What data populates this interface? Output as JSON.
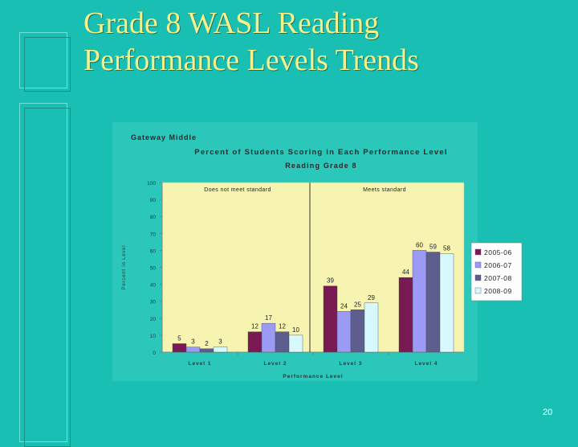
{
  "slide": {
    "title_line1": "Grade 8 WASL Reading",
    "title_line2": "Performance Levels Trends",
    "page_number": "20"
  },
  "chart_data": {
    "type": "bar",
    "school": "Gateway Middle",
    "title": "Percent of Students Scoring in Each Performance Level",
    "subtitle": "Reading Grade 8",
    "xlabel": "Performance Level",
    "ylabel": "Percent in Level",
    "ylim": [
      0,
      100
    ],
    "yticks": [
      0,
      10,
      20,
      30,
      40,
      50,
      60,
      70,
      80,
      90,
      100
    ],
    "grid": false,
    "legend_position": "right",
    "categories": [
      "Level 1",
      "Level 2",
      "Level 3",
      "Level 4"
    ],
    "series": [
      {
        "name": "2005-06",
        "color": "#7a1a55",
        "values": [
          5,
          12,
          39,
          44
        ]
      },
      {
        "name": "2006-07",
        "color": "#9b9bf5",
        "values": [
          3,
          17,
          24,
          60
        ]
      },
      {
        "name": "2007-08",
        "color": "#5e5e8e",
        "values": [
          2,
          12,
          25,
          59
        ]
      },
      {
        "name": "2008-09",
        "color": "#d8f8ff",
        "values": [
          3,
          10,
          29,
          58
        ]
      }
    ],
    "annotations": {
      "left": "Does not meet standard",
      "right": "Meets standard"
    },
    "plot_background": "#f7f3b0"
  }
}
